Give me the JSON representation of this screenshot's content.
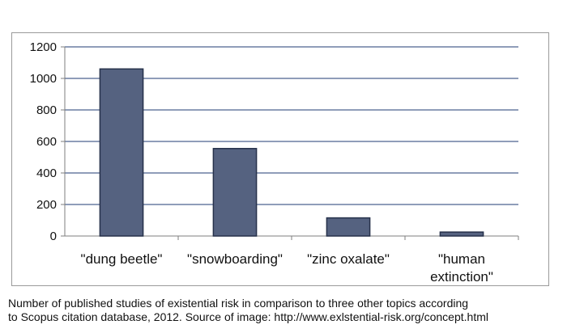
{
  "chart_data": {
    "type": "bar",
    "categories": [
      "\"dung beetle\"",
      "\"snowboarding\"",
      "\"zinc oxalate\"",
      "\"human\nextinction\""
    ],
    "values": [
      1060,
      555,
      115,
      25
    ],
    "ylim": [
      0,
      1200
    ],
    "yticks": [
      0,
      200,
      400,
      600,
      800,
      1000,
      1200
    ],
    "grid": true,
    "bar_color": "#556280",
    "bar_edge_color": "#26314a",
    "grid_color": "#1f3b73",
    "legend": "none"
  },
  "caption": {
    "line1": "Number of published studies of existential risk in comparison to three other topics according",
    "line2": "to Scopus citation database, 2012.  Source of image: http://www.exlstential-risk.org/concept.html"
  }
}
